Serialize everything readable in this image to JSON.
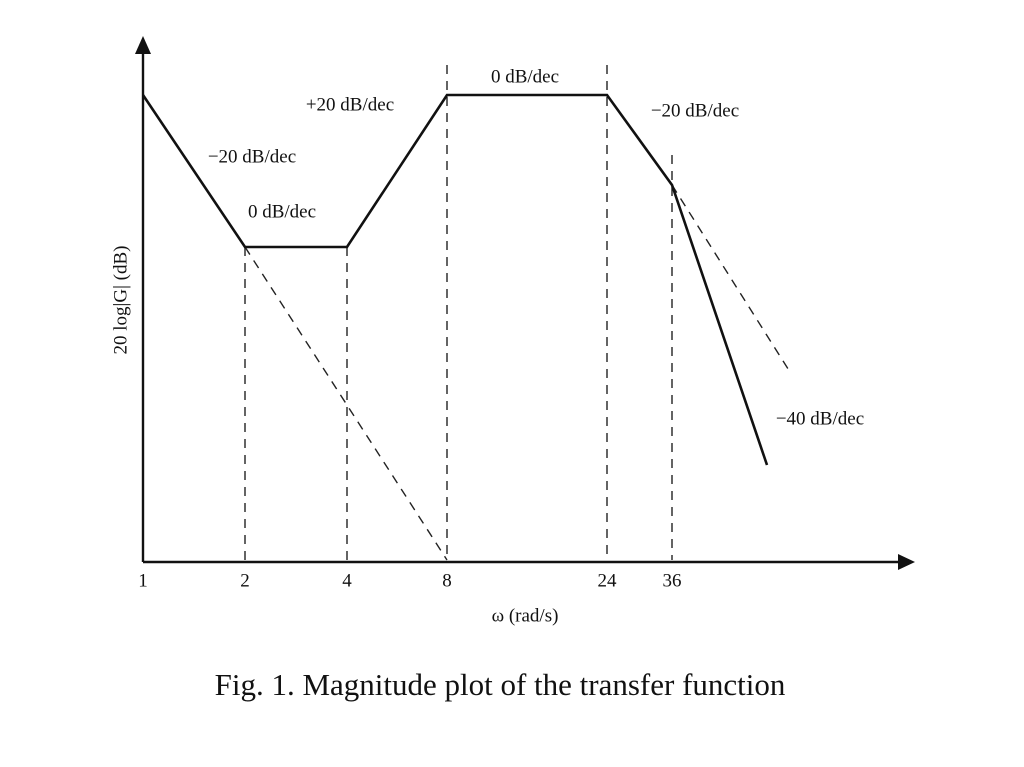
{
  "diagram": {
    "y_axis_label": "20 log|G| (dB)",
    "x_axis_label": "ω (rad/s)",
    "x_ticks": [
      "1",
      "2",
      "4",
      "8",
      "24",
      "36"
    ],
    "slopes": [
      "−20 dB/dec",
      "0 dB/dec",
      "+20 dB/dec",
      "0 dB/dec",
      "−20 dB/dec",
      "−40 dB/dec"
    ],
    "caption": "Fig. 1. Magnitude plot of the transfer function"
  }
}
